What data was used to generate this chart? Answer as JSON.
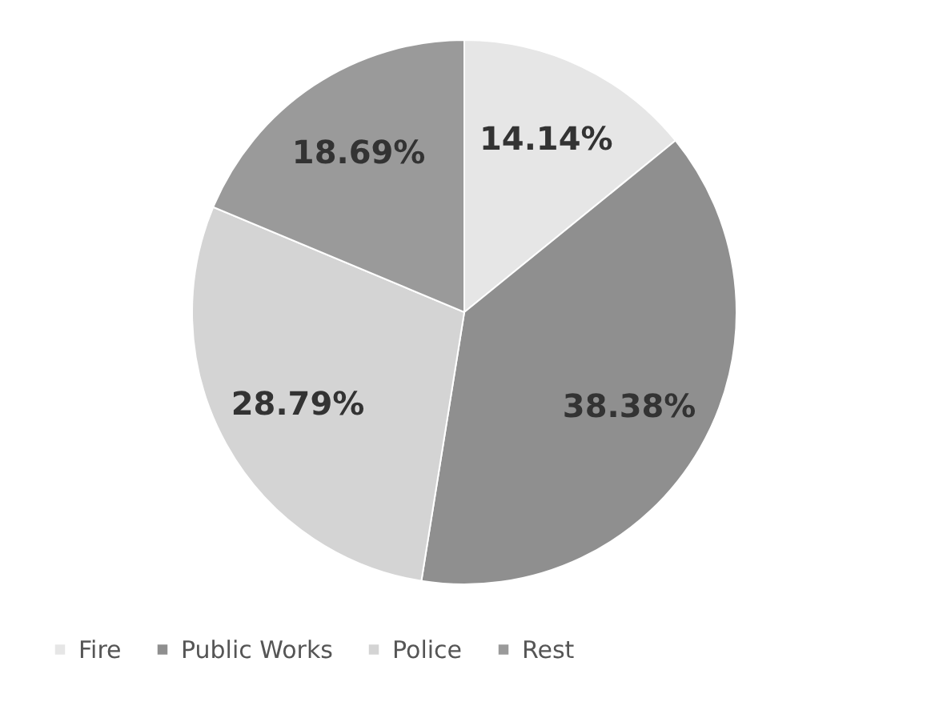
{
  "chart_data": {
    "type": "pie",
    "categories": [
      "Fire",
      "Public Works",
      "Police",
      "Rest"
    ],
    "values": [
      14.14,
      38.38,
      28.79,
      18.69
    ],
    "value_labels": [
      "14.14%",
      "38.38%",
      "28.79%",
      "18.69%"
    ],
    "colors": [
      "#e6e6e6",
      "#8f8f8f",
      "#d4d4d4",
      "#9a9a9a"
    ],
    "legend": "bottom"
  }
}
